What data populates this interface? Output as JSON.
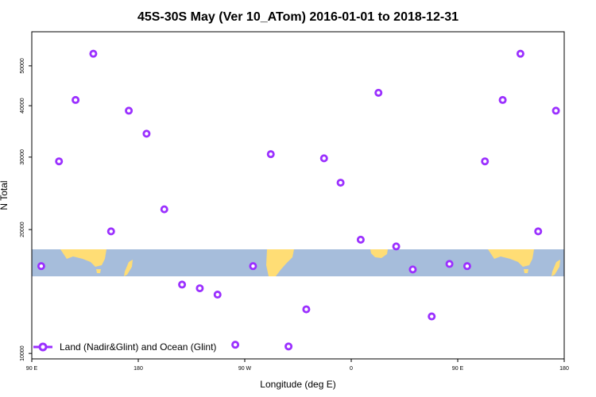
{
  "chart_data": {
    "type": "scatter",
    "title": "45S-30S May (Ver 10_ATom)   2016-01-01 to 2018-12-31",
    "xlabel": "Longitude (deg E)",
    "ylabel": "N Total",
    "x_ticks": [
      {
        "value": 90,
        "label": "90 E"
      },
      {
        "value": 180,
        "label": "180"
      },
      {
        "value": 270,
        "label": "90 W"
      },
      {
        "value": 360,
        "label": "0"
      },
      {
        "value": 450,
        "label": "90 E"
      },
      {
        "value": 540,
        "label": "180"
      }
    ],
    "y_ticks": [
      10000,
      20000,
      30000,
      40000,
      50000
    ],
    "xlim": [
      90,
      540
    ],
    "y_scale": "log",
    "ylim": [
      9700,
      60500
    ],
    "map_band": {
      "lat_range": [
        -45,
        -30
      ],
      "ocean_color": "#a6bddb",
      "land_color": "#ffdd75"
    },
    "series": [
      {
        "name": "Land (Nadir&Glint) and Ocean (Glint)",
        "color": "#9b30ff",
        "marker": "open-circle",
        "points": [
          [
            98,
            16300
          ],
          [
            113,
            29300
          ],
          [
            127,
            41300
          ],
          [
            142,
            53500
          ],
          [
            157,
            19800
          ],
          [
            172,
            38900
          ],
          [
            187,
            34200
          ],
          [
            202,
            22400
          ],
          [
            217,
            14700
          ],
          [
            232,
            14400
          ],
          [
            247,
            13900
          ],
          [
            262,
            10500
          ],
          [
            277,
            16300
          ],
          [
            292,
            30500
          ],
          [
            307,
            10400
          ],
          [
            322,
            12800
          ],
          [
            337,
            29800
          ],
          [
            351,
            26000
          ],
          [
            368,
            18900
          ],
          [
            383,
            43000
          ],
          [
            398,
            18200
          ],
          [
            412,
            16000
          ],
          [
            428,
            12300
          ],
          [
            443,
            16500
          ],
          [
            458,
            16300
          ],
          [
            473,
            29300
          ],
          [
            488,
            41300
          ],
          [
            503,
            53500
          ],
          [
            518,
            19800
          ],
          [
            533,
            38900
          ]
        ]
      }
    ],
    "legend": {
      "position": "bottom-left"
    }
  }
}
